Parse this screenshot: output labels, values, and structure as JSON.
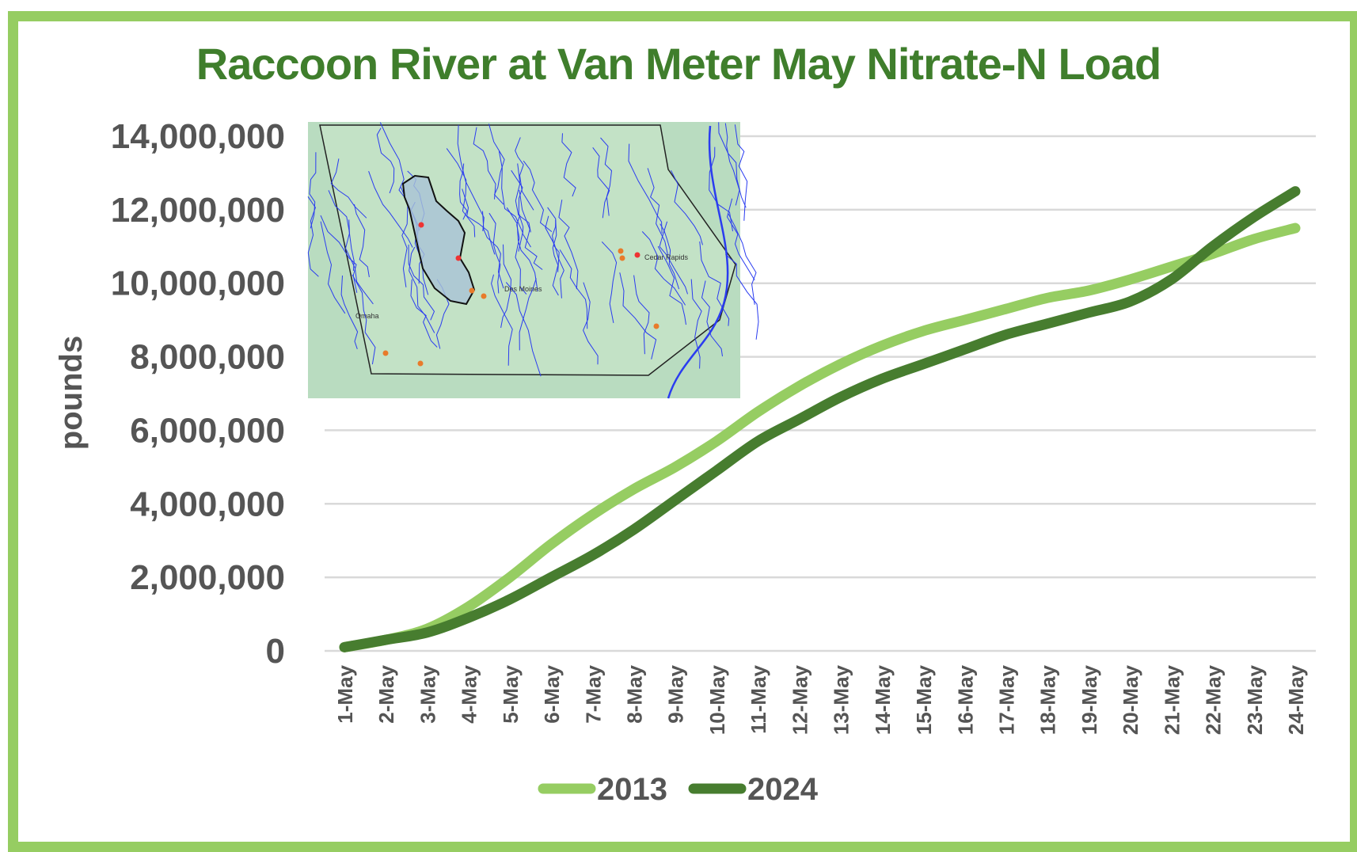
{
  "chart_data": {
    "type": "line",
    "title": "Raccoon River at Van Meter May Nitrate-N Load",
    "xlabel": "",
    "ylabel": "pounds",
    "ylim": [
      0,
      14000000
    ],
    "yticks": [
      0,
      2000000,
      4000000,
      6000000,
      8000000,
      10000000,
      12000000,
      14000000
    ],
    "ytick_labels": [
      "0",
      "2,000,000",
      "4,000,000",
      "6,000,000",
      "8,000,000",
      "10,000,000",
      "12,000,000",
      "14,000,000"
    ],
    "categories": [
      "1-May",
      "2-May",
      "3-May",
      "4-May",
      "5-May",
      "6-May",
      "7-May",
      "8-May",
      "9-May",
      "10-May",
      "11-May",
      "12-May",
      "13-May",
      "14-May",
      "15-May",
      "16-May",
      "17-May",
      "18-May",
      "19-May",
      "20-May",
      "21-May",
      "22-May",
      "23-May",
      "24-May"
    ],
    "grid": true,
    "legend_position": "bottom",
    "series": [
      {
        "name": "2013",
        "color": "#96cd62",
        "values": [
          100000,
          300000,
          600000,
          1200000,
          2000000,
          2900000,
          3700000,
          4400000,
          5000000,
          5700000,
          6500000,
          7200000,
          7800000,
          8300000,
          8700000,
          9000000,
          9300000,
          9600000,
          9800000,
          10100000,
          10450000,
          10800000,
          11200000,
          11500000
        ]
      },
      {
        "name": "2024",
        "color": "#477d2f",
        "values": [
          100000,
          300000,
          500000,
          900000,
          1400000,
          2000000,
          2600000,
          3300000,
          4100000,
          4900000,
          5700000,
          6300000,
          6900000,
          7400000,
          7800000,
          8200000,
          8600000,
          8900000,
          9200000,
          9500000,
          10100000,
          11000000,
          11800000,
          12500000
        ]
      }
    ]
  },
  "colors": {
    "frame": "#96cd62",
    "title": "#3f7e2c",
    "grid": "#d9d9d9",
    "map_land": "#b9dcc0",
    "map_river": "#2a3cf0",
    "map_watershed": "#a9c3d6"
  },
  "inset_map": {
    "labels": [
      "Des Moines",
      "Cedar Rapids",
      "Omaha"
    ]
  }
}
